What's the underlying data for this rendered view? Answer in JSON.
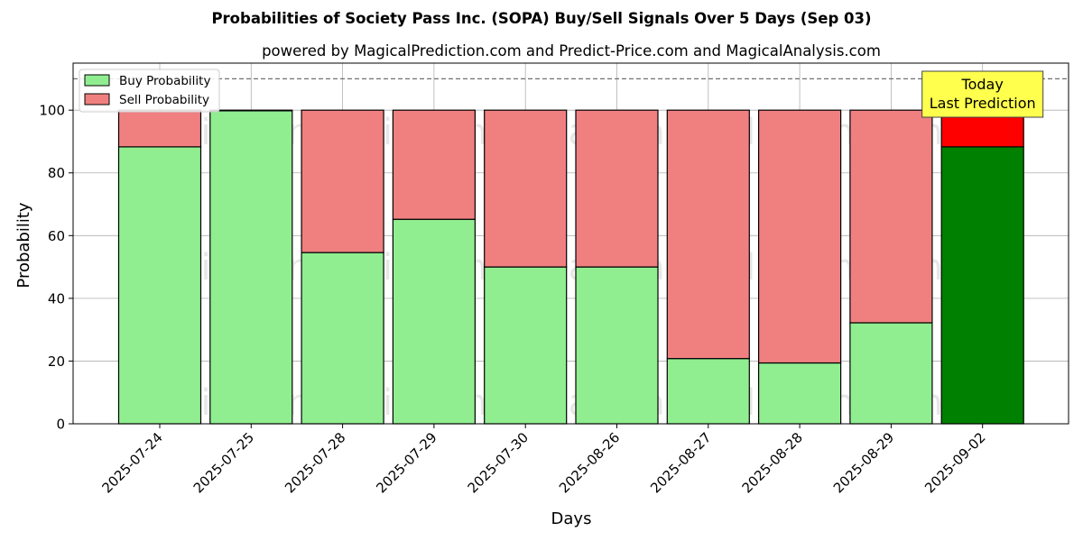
{
  "chart_data": {
    "type": "bar",
    "stacked": true,
    "title": "Probabilities of Society Pass Inc. (SOPA) Buy/Sell Signals Over 5 Days (Sep 03)",
    "subtitle": "powered by MagicalPrediction.com and Predict-Price.com and MagicalAnalysis.com",
    "xlabel": "Days",
    "ylabel": "Probability",
    "ylim": [
      0,
      115
    ],
    "yticks": [
      0,
      20,
      40,
      60,
      80,
      100
    ],
    "grid": true,
    "legend_position": "top-left",
    "reference_line": 110,
    "categories": [
      "2025-07-24",
      "2025-07-25",
      "2025-07-28",
      "2025-07-29",
      "2025-07-30",
      "2025-08-26",
      "2025-08-27",
      "2025-08-28",
      "2025-08-29",
      "2025-09-02"
    ],
    "series": [
      {
        "name": "Buy Probability",
        "color": "#90ee90",
        "values": [
          88.3,
          99.8,
          54.6,
          65.2,
          50.0,
          50.0,
          20.8,
          19.4,
          32.2,
          88.3
        ]
      },
      {
        "name": "Sell Probability",
        "color": "#f08080",
        "values": [
          11.7,
          0.2,
          45.4,
          34.8,
          50.0,
          50.0,
          79.2,
          80.6,
          67.8,
          11.7
        ]
      }
    ],
    "highlight": {
      "category": "2025-09-02",
      "buy_color": "#008000",
      "sell_color": "#ff0000",
      "annotation": [
        "Today",
        "Last Prediction"
      ],
      "annotation_bg": "#ffff4d"
    },
    "watermarks": [
      "MagicalAnalysis.com",
      "MagicalPrediction.com"
    ]
  }
}
